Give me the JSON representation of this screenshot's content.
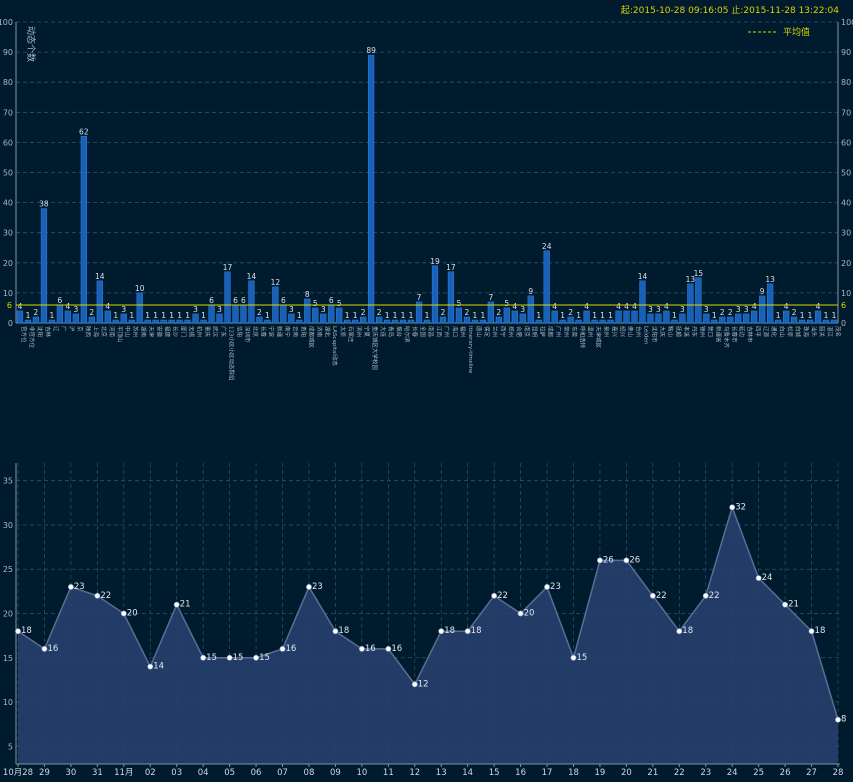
{
  "header": {
    "range_text": "起:2015-10-28 09:16:05 止:2015-11-28 13:22:04"
  },
  "colors": {
    "background": "#001a2e",
    "bar": "#1860b8",
    "bar_edge": "#2f86e0",
    "average_line": "#d8d800",
    "area_fill": "#26406e",
    "line": "#5a6e94",
    "grid": "#2e5468",
    "header_text": "#e0d000"
  },
  "chart_data": [
    {
      "type": "bar",
      "ylabel": "动态个数",
      "ylim": [
        0,
        100
      ],
      "yticks": [
        0,
        10,
        20,
        30,
        40,
        50,
        60,
        70,
        80,
        90,
        100
      ],
      "legend": {
        "label": "平均值",
        "position": "top-right"
      },
      "average": 6,
      "average_label": "6",
      "values": [
        4,
        1,
        2,
        38,
        1,
        6,
        4,
        3,
        62,
        2,
        14,
        4,
        1,
        3,
        1,
        10,
        1,
        1,
        1,
        1,
        1,
        1,
        3,
        1,
        6,
        3,
        17,
        6,
        6,
        14,
        2,
        1,
        12,
        6,
        3,
        1,
        8,
        5,
        3,
        6,
        5,
        1,
        1,
        2,
        89,
        2,
        1,
        1,
        1,
        1,
        7,
        1,
        19,
        2,
        17,
        5,
        2,
        1,
        1,
        7,
        2,
        5,
        4,
        3,
        9,
        1,
        24,
        4,
        1,
        2,
        1,
        4,
        1,
        1,
        1,
        4,
        4,
        4,
        14,
        3,
        3,
        4,
        1,
        3,
        13,
        15,
        3,
        1,
        2,
        2,
        3,
        3,
        4,
        9,
        13,
        1,
        4,
        2,
        1,
        1,
        4,
        1,
        1
      ],
      "category_labels": [
        "官方位",
        "非官方位",
        "沈阳",
        "吉林",
        "辽",
        "广",
        "沪",
        "京",
        "陕西",
        "上海",
        "北京",
        "河南",
        "平顶山",
        "中山",
        "苏州",
        "湖南",
        "天津",
        "安徽",
        "福建",
        "长沙",
        "厦门",
        "无锡",
        "杭州",
        "重庆",
        "武汉",
        "广东",
        "123小区小区动态群组",
        "信阳",
        "深圳市",
        "北京",
        "长春",
        "宁波",
        "新疆",
        "南宁",
        "云南",
        "贵阳",
        "成都城区",
        "济南",
        "湖北",
        "LAScapital动态",
        "太原",
        "石家庄",
        "滨州",
        "宁夏",
        "重庆城区大学校园",
        "大连",
        "青岛",
        "烟台",
        "哈尔滨",
        "长春",
        "全国",
        "南昌",
        "江西",
        "广州",
        "海口",
        "福州",
        "Itinerary-timeline",
        "唐山",
        "保定",
        "兰州",
        "西宁",
        "郑州",
        "合肥",
        "南京",
        "昆明",
        "拉萨",
        "成都",
        "广州",
        "常州",
        "东莞",
        "呼和浩特",
        "温州",
        "天津城区",
        "泉州",
        "嘉兴",
        "绍兴",
        "佛山",
        "台州",
        "Leiden",
        "沈阳市",
        "大庆",
        "鞍山",
        "抚顺",
        "本溪",
        "丹东",
        "锦州",
        "营口",
        "新疆省",
        "乌鲁木齐",
        "长春市",
        "延边",
        "吉林市",
        "四平",
        "辽源",
        "通化",
        "白山",
        "松原",
        "白城",
        "珠海",
        "汕头",
        "韶关",
        "湛江",
        "茂名"
      ]
    },
    {
      "type": "area",
      "ylim": [
        3,
        37
      ],
      "yticks": [
        5,
        10,
        15,
        20,
        25,
        30,
        35
      ],
      "x": [
        "10月28",
        "29",
        "30",
        "31",
        "11月",
        "02",
        "03",
        "04",
        "05",
        "06",
        "07",
        "08",
        "09",
        "10",
        "11",
        "12",
        "13",
        "14",
        "15",
        "16",
        "17",
        "18",
        "19",
        "20",
        "21",
        "22",
        "23",
        "24",
        "25",
        "26",
        "27",
        "28"
      ],
      "values": [
        18,
        16,
        23,
        22,
        20,
        14,
        21,
        15,
        15,
        15,
        16,
        23,
        18,
        16,
        16,
        12,
        18,
        18,
        22,
        20,
        23,
        15,
        26,
        26,
        22,
        18,
        22,
        32,
        24,
        21,
        18,
        8
      ]
    }
  ]
}
